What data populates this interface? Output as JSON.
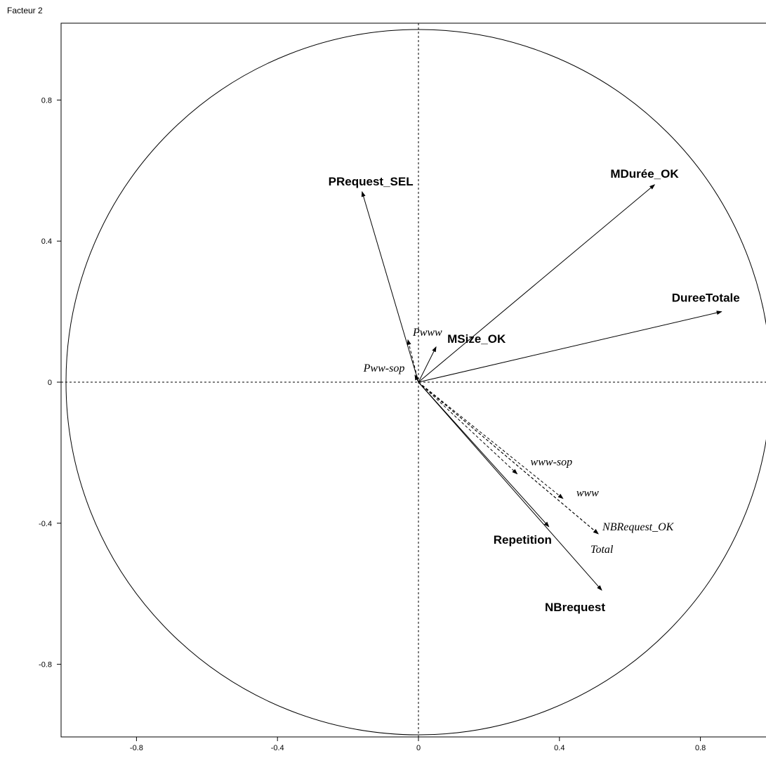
{
  "chart_data": {
    "type": "scatter",
    "title": "",
    "ylabel": "Facteur 2",
    "xlabel": "",
    "xlim": [
      -1.0,
      1.0
    ],
    "ylim": [
      -1.0,
      1.0
    ],
    "grid": false,
    "x_ticks": [
      -0.8,
      -0.4,
      0,
      0.4,
      0.8
    ],
    "y_ticks": [
      0.8,
      0.4,
      0,
      -0.4,
      -0.8
    ],
    "x_tick_labels": [
      "-0.8",
      "-0.4",
      "0",
      "0.4",
      "0.8"
    ],
    "y_tick_labels": [
      "0.8",
      "0.4",
      "0",
      "-0.4",
      "-0.8"
    ],
    "unit_circle": true,
    "series": [
      {
        "name": "PRequest_SEL",
        "x": -0.16,
        "y": 0.54,
        "style": "active"
      },
      {
        "name": "MDurée_OK",
        "x": 0.67,
        "y": 0.56,
        "style": "active"
      },
      {
        "name": "DureeTotale",
        "x": 0.86,
        "y": 0.2,
        "style": "active"
      },
      {
        "name": "MSize_OK",
        "x": 0.05,
        "y": 0.1,
        "style": "active"
      },
      {
        "name": "Repetition",
        "x": 0.37,
        "y": -0.41,
        "style": "active"
      },
      {
        "name": "NBrequest",
        "x": 0.52,
        "y": -0.59,
        "style": "active"
      },
      {
        "name": "Pwww",
        "x": -0.03,
        "y": 0.12,
        "style": "supplementary"
      },
      {
        "name": "Pww-sop",
        "x": -0.01,
        "y": 0.02,
        "style": "supplementary"
      },
      {
        "name": "www-sop",
        "x": 0.28,
        "y": -0.26,
        "style": "supplementary"
      },
      {
        "name": "www",
        "x": 0.41,
        "y": -0.33,
        "style": "supplementary"
      },
      {
        "name": "NBRequest_OK",
        "x": 0.51,
        "y": -0.43,
        "style": "supplementary"
      },
      {
        "name": "Total",
        "x": 0.51,
        "y": -0.43,
        "style": "supplementary"
      }
    ]
  }
}
